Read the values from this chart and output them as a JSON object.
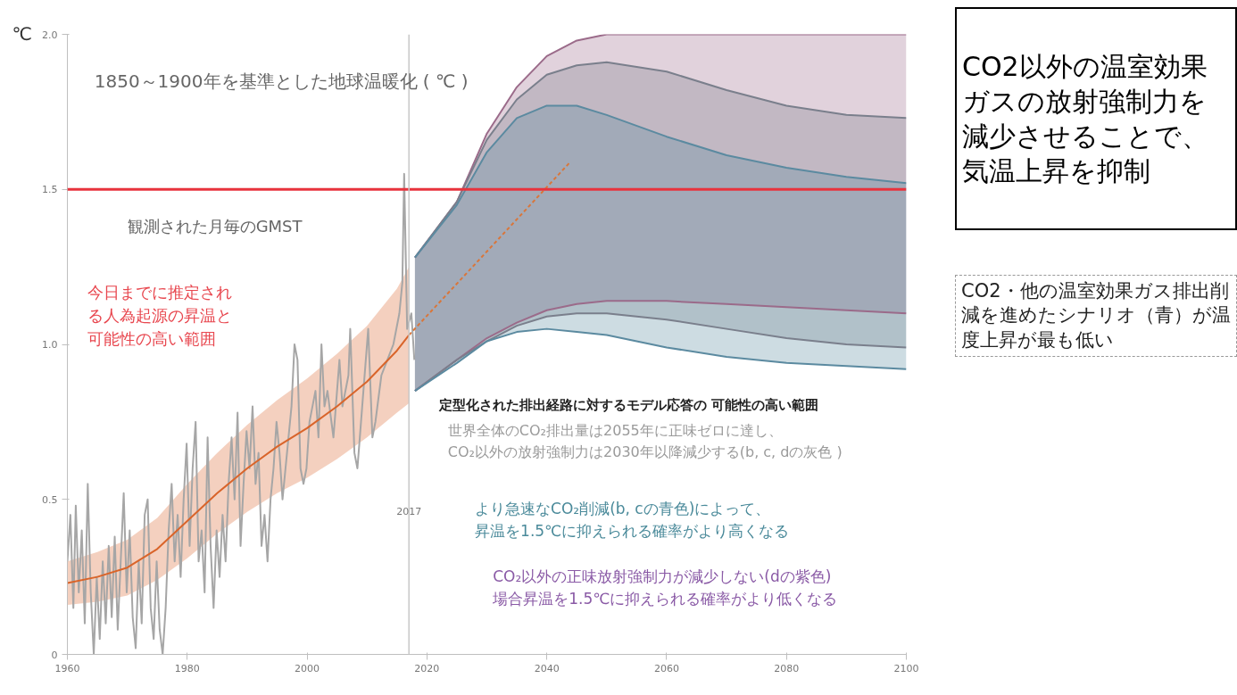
{
  "chart_data": {
    "type": "line",
    "title": "1850～1900年を基準とした地球温暖化 ( ℃ )",
    "ylabel": "℃",
    "xlim": [
      1960,
      2100
    ],
    "xticks": [
      1960,
      1980,
      2000,
      2020,
      2040,
      2060,
      2080,
      2100
    ],
    "ylim": [
      0,
      2.0
    ],
    "yticks": [
      0,
      0.5,
      {
        "value": 1.0,
        "label": "1.0"
      },
      1.5,
      {
        "value": 2.0,
        "label": "2.0"
      }
    ],
    "grid": false,
    "ref_lines": [
      {
        "axis": "y",
        "value": 1.5,
        "color": "#e8323c"
      },
      {
        "axis": "x",
        "value": 2017,
        "label": "2017",
        "color": "#c8c8c8"
      }
    ],
    "series": [
      {
        "type": "line",
        "color": "#9b6b8a",
        "x": [
          2018,
          2025,
          2030,
          2035,
          2040,
          2045,
          2050,
          2060,
          2070,
          2080,
          2090,
          2100
        ],
        "values": [
          0.85,
          0.95,
          1.02,
          1.07,
          1.11,
          1.13,
          1.14,
          1.14,
          1.13,
          1.12,
          1.11,
          1.1
        ]
      },
      {
        "type": "line",
        "color": "#7a7f8c",
        "x": [
          2018,
          2025,
          2030,
          2035,
          2040,
          2045,
          2050,
          2060,
          2070,
          2080,
          2090,
          2100
        ],
        "values": [
          0.85,
          0.95,
          1.01,
          1.06,
          1.09,
          1.1,
          1.1,
          1.08,
          1.05,
          1.02,
          1.0,
          0.99
        ]
      },
      {
        "type": "line",
        "color": "#5b8aa0",
        "x": [
          2018,
          2025,
          2030,
          2035,
          2040,
          2045,
          2050,
          2060,
          2070,
          2080,
          2090,
          2100
        ],
        "values": [
          0.85,
          0.94,
          1.01,
          1.04,
          1.05,
          1.04,
          1.03,
          0.99,
          0.96,
          0.94,
          0.93,
          0.92
        ]
      },
      {
        "type": "line",
        "color": "#9b6b8a",
        "values": [
          1.28,
          1.46,
          1.68,
          1.83,
          1.93,
          1.98,
          2.0,
          2.0,
          2.0,
          2.0,
          2.0,
          2.0
        ],
        "x": [
          2018,
          2025,
          2030,
          2035,
          2040,
          2045,
          2050,
          2060,
          2070,
          2080,
          2090,
          2100
        ],
        "lower": [
          0.85,
          0.95,
          1.02,
          1.07,
          1.11,
          1.13,
          1.14,
          1.14,
          1.13,
          1.12,
          1.11,
          1.1
        ],
        "upper": [
          1.28,
          1.46,
          1.68,
          1.83,
          1.93,
          1.98,
          2.0,
          2.0,
          2.0,
          2.0,
          2.0,
          2.0
        ]
      },
      {
        "type": "line",
        "color": "#7a7f8c",
        "values": [
          1.28,
          1.46,
          1.66,
          1.79,
          1.87,
          1.9,
          1.91,
          1.88,
          1.82,
          1.77,
          1.74,
          1.73
        ],
        "x": [
          2018,
          2025,
          2030,
          2035,
          2040,
          2045,
          2050,
          2060,
          2070,
          2080,
          2090,
          2100
        ],
        "lower": [
          0.85,
          0.95,
          1.01,
          1.06,
          1.09,
          1.1,
          1.1,
          1.08,
          1.05,
          1.02,
          1.0,
          0.99
        ],
        "upper": [
          1.28,
          1.46,
          1.66,
          1.79,
          1.87,
          1.9,
          1.91,
          1.88,
          1.82,
          1.77,
          1.74,
          1.73
        ]
      },
      {
        "type": "line",
        "color": "#5b8aa0",
        "values": [
          1.28,
          1.45,
          1.62,
          1.73,
          1.77,
          1.77,
          1.74,
          1.67,
          1.61,
          1.57,
          1.54,
          1.52
        ],
        "x": [
          2018,
          2025,
          2030,
          2035,
          2040,
          2045,
          2050,
          2060,
          2070,
          2080,
          2090,
          2100
        ],
        "lower": [
          0.85,
          0.94,
          1.01,
          1.04,
          1.05,
          1.04,
          1.03,
          0.99,
          0.96,
          0.94,
          0.93,
          0.92
        ],
        "upper": [
          1.28,
          1.45,
          1.62,
          1.73,
          1.77,
          1.77,
          1.74,
          1.67,
          1.61,
          1.57,
          1.54,
          1.52
        ]
      },
      {
        "color": "#a6a6a6",
        "x": [
          1960.0,
          1960.5,
          1961.0,
          1961.4,
          1961.9,
          1962.4,
          1962.9,
          1963.4,
          1963.9,
          1964.4,
          1964.9,
          1965.4,
          1965.9,
          1966.4,
          1966.9,
          1967.4,
          1967.9,
          1968.4,
          1968.9,
          1969.4,
          1969.9,
          1970.4,
          1970.9,
          1971.4,
          1971.9,
          1972.4,
          1972.9,
          1973.4,
          1973.9,
          1974.4,
          1974.9,
          1975.4,
          1975.9,
          1976.4,
          1976.9,
          1977.4,
          1977.9,
          1978.4,
          1978.9,
          1979.4,
          1979.9,
          1980.4,
          1980.9,
          1981.4,
          1981.9,
          1982.4,
          1982.9,
          1983.4,
          1983.9,
          1984.4,
          1984.9,
          1985.4,
          1985.9,
          1986.4,
          1986.9,
          1987.4,
          1987.9,
          1988.4,
          1988.9,
          1989.4,
          1989.9,
          1990.4,
          1990.9,
          1991.4,
          1991.9,
          1992.4,
          1992.9,
          1993.4,
          1993.9,
          1994.4,
          1994.9,
          1995.4,
          1995.9,
          1996.4,
          1996.9,
          1997.4,
          1997.9,
          1998.4,
          1998.9,
          1999.4,
          1999.9,
          2000.4,
          2001.4,
          2001.9,
          2002.4,
          2002.9,
          2003.4,
          2004.4,
          2005.4,
          2005.9,
          2006.9,
          2007.2,
          2007.9,
          2008.4,
          2009.4,
          2010.2,
          2010.9,
          2011.4,
          2012.4,
          2013.4,
          2014.4,
          2015.4,
          2015.9,
          2016.2,
          2016.7,
          2017.4,
          2017.9
        ],
        "values": [
          0.3,
          0.45,
          0.15,
          0.48,
          0.2,
          0.4,
          0.1,
          0.55,
          0.2,
          0.0,
          0.25,
          0.05,
          0.3,
          0.1,
          0.35,
          0.12,
          0.38,
          0.08,
          0.3,
          0.52,
          0.2,
          0.4,
          0.12,
          0.02,
          0.3,
          0.1,
          0.45,
          0.5,
          0.15,
          0.05,
          0.3,
          0.08,
          0.0,
          0.15,
          0.4,
          0.55,
          0.3,
          0.45,
          0.25,
          0.5,
          0.68,
          0.35,
          0.6,
          0.75,
          0.3,
          0.4,
          0.2,
          0.7,
          0.35,
          0.15,
          0.4,
          0.25,
          0.45,
          0.3,
          0.55,
          0.7,
          0.5,
          0.78,
          0.35,
          0.55,
          0.72,
          0.6,
          0.8,
          0.55,
          0.65,
          0.35,
          0.45,
          0.3,
          0.5,
          0.6,
          0.75,
          0.65,
          0.5,
          0.6,
          0.7,
          0.8,
          1.0,
          0.95,
          0.6,
          0.55,
          0.6,
          0.75,
          0.85,
          0.7,
          1.0,
          0.8,
          0.85,
          0.7,
          0.95,
          0.8,
          0.9,
          1.05,
          0.65,
          0.6,
          0.85,
          1.05,
          0.7,
          0.75,
          0.9,
          0.95,
          1.0,
          1.1,
          1.2,
          1.55,
          1.05,
          1.1,
          0.95
        ]
      },
      {
        "type": "line",
        "color": "#d9642a",
        "x": [
          1960,
          1965,
          1970,
          1975,
          1980,
          1985,
          1990,
          1995,
          2000,
          2005,
          2010,
          2015,
          2017
        ],
        "values": [
          0.23,
          0.25,
          0.28,
          0.34,
          0.43,
          0.52,
          0.6,
          0.67,
          0.73,
          0.8,
          0.88,
          0.98,
          1.03
        ],
        "lower": [
          0.16,
          0.17,
          0.19,
          0.24,
          0.31,
          0.39,
          0.46,
          0.52,
          0.57,
          0.63,
          0.7,
          0.78,
          0.81
        ],
        "upper": [
          0.3,
          0.33,
          0.37,
          0.44,
          0.55,
          0.65,
          0.74,
          0.82,
          0.89,
          0.97,
          1.06,
          1.18,
          1.25
        ]
      },
      {
        "type": "line",
        "color": "#d9763a",
        "line_style": "dashed",
        "x": [
          2017,
          2044
        ],
        "values": [
          1.03,
          1.59
        ]
      }
    ],
    "annotations": [
      "観測された月毎のGMST",
      "今日までに推定される人為起源の昇温と可能性の高い範囲",
      "定型化された排出経路に対するモデル応答の 可能性の高い範囲",
      "世界全体のCO₂排出量は2055年に正味ゼロに達し、CO₂以外の放射強制力は2030年以降減少する(b, c, dの灰色 )",
      "より急速なCO₂削減(b, cの青色)によって、昇温を1.5℃に抑えられる確率がより高くなる",
      "CO₂以外の正味放射強制力が減少しない(dの紫色)場合昇温を1.5℃に抑えられる確率がより低くなる",
      "CO2以外の温室効果ガスの放射強制力を減少させることで、気温上昇を抑制",
      "CO2・他の温室効果ガス排出削減を進めたシナリオ（青）が温度上昇が最も低い"
    ]
  }
}
